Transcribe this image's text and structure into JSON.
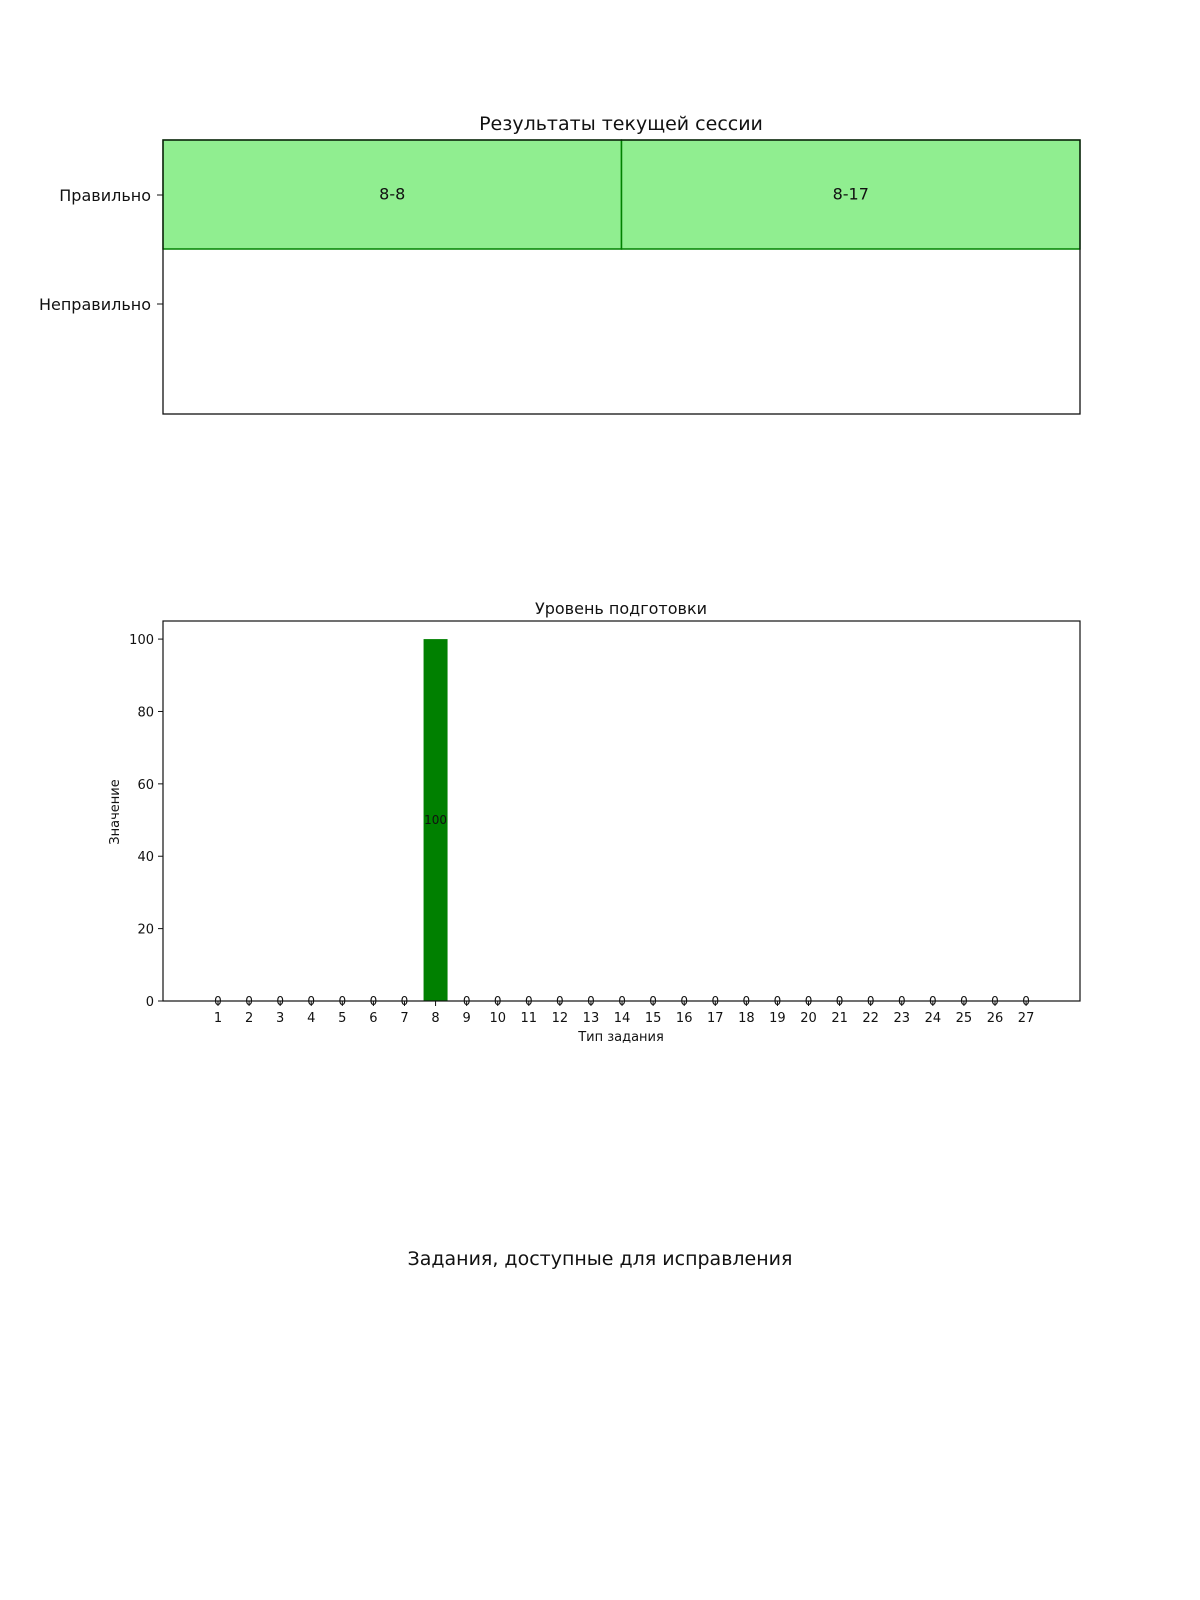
{
  "chart_data": [
    {
      "type": "bar",
      "orientation": "horizontal",
      "title": "Результаты текущей сессии",
      "categories": [
        "Правильно",
        "Неправильно"
      ],
      "segments": [
        {
          "category": "Правильно",
          "label": "8-8",
          "value": 1
        },
        {
          "category": "Правильно",
          "label": "8-17",
          "value": 1
        }
      ],
      "xlim": [
        0,
        2
      ],
      "colors": {
        "correct_fill": "#90ee90",
        "correct_edge": "#008000"
      }
    },
    {
      "type": "bar",
      "title": "Уровень подготовки",
      "xlabel": "Тип задания",
      "ylabel": "Значение",
      "categories": [
        "1",
        "2",
        "3",
        "4",
        "5",
        "6",
        "7",
        "8",
        "9",
        "10",
        "11",
        "12",
        "13",
        "14",
        "15",
        "16",
        "17",
        "18",
        "19",
        "20",
        "21",
        "22",
        "23",
        "24",
        "25",
        "26",
        "27"
      ],
      "values": [
        0,
        0,
        0,
        0,
        0,
        0,
        0,
        100,
        0,
        0,
        0,
        0,
        0,
        0,
        0,
        0,
        0,
        0,
        0,
        0,
        0,
        0,
        0,
        0,
        0,
        0,
        0
      ],
      "ylim": [
        0,
        105
      ],
      "yticks": [
        "0",
        "20",
        "40",
        "60",
        "80",
        "100"
      ],
      "grid": false,
      "colors": {
        "bar": "#008000"
      }
    }
  ],
  "section_title": "Задания, доступные для исправления"
}
